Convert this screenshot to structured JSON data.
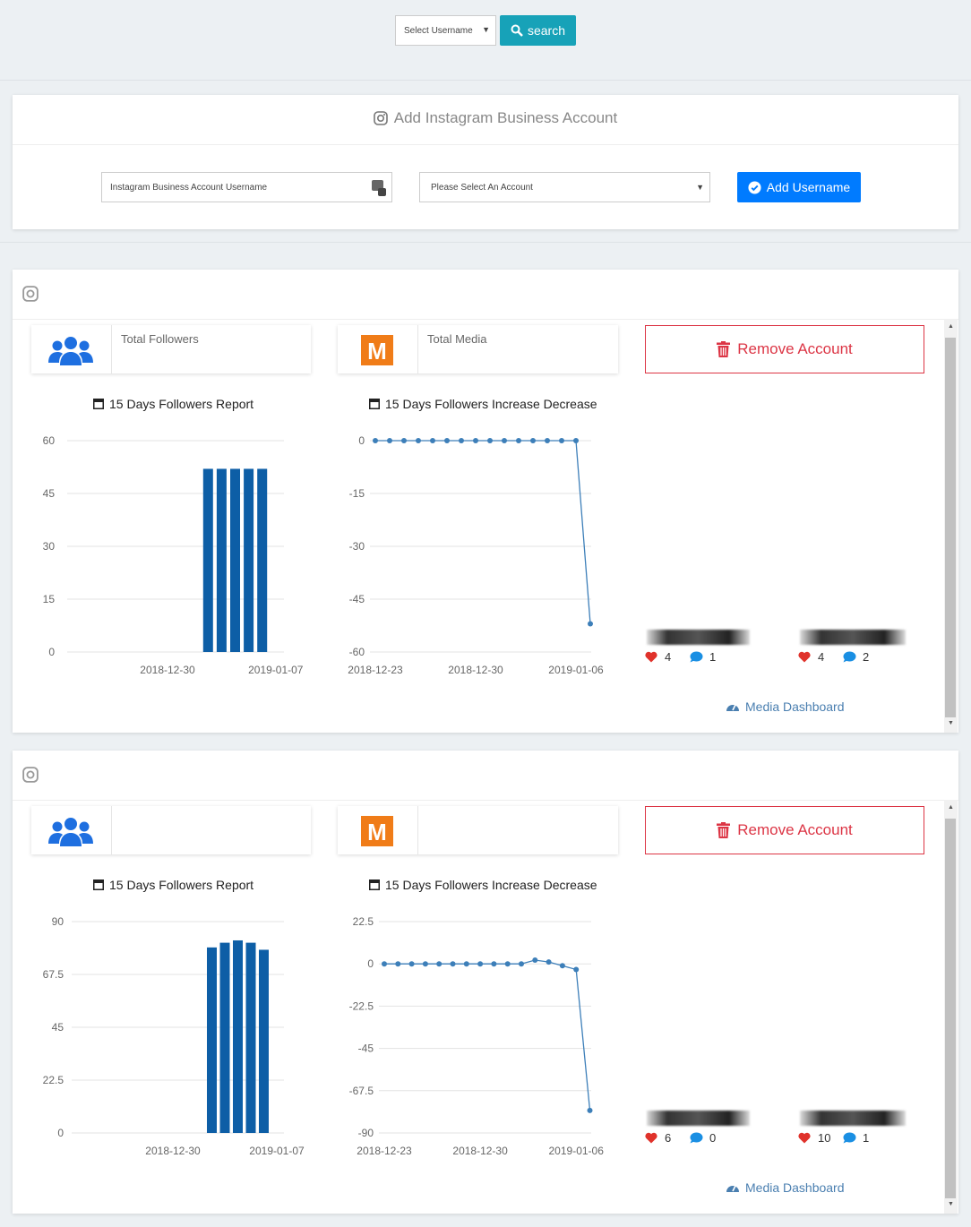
{
  "header": {
    "select_placeholder": "Select Username",
    "search_button": "search"
  },
  "add_account": {
    "title": "Add Instagram Business Account",
    "username_placeholder": "Instagram Business Account Username",
    "account_select": "Please Select An Account",
    "button": "Add Username"
  },
  "accounts": [
    {
      "total_followers_label": "Total Followers",
      "total_media_label": "Total Media",
      "remove_button": "Remove Account",
      "charts": [
        {
          "type": "bar",
          "title": "15 Days Followers Report",
          "categories": [
            null,
            null,
            null,
            null,
            null,
            null,
            null,
            "2018-12-30",
            null,
            null,
            null,
            null,
            null,
            null,
            null,
            "2019-01-07"
          ],
          "values": [
            null,
            null,
            null,
            null,
            null,
            null,
            null,
            null,
            null,
            null,
            52,
            52,
            52,
            52,
            52,
            null
          ],
          "color": "#0d5ea6",
          "ylim": [
            0,
            60
          ],
          "yticks": [
            0,
            15,
            30,
            45,
            60
          ],
          "grid": true
        },
        {
          "type": "line",
          "title": "15 Days Followers Increase Decrease",
          "categories": [
            "2018-12-23",
            null,
            null,
            null,
            null,
            null,
            null,
            "2018-12-30",
            null,
            null,
            null,
            null,
            null,
            null,
            "2019-01-06",
            null
          ],
          "values": [
            0,
            0,
            0,
            0,
            0,
            0,
            0,
            0,
            0,
            0,
            0,
            0,
            0,
            0,
            0,
            -52
          ],
          "color": "#3d7fb9",
          "ylim": [
            -60,
            0
          ],
          "yticks": [
            0,
            -15,
            -30,
            -45,
            -60
          ],
          "grid": true
        }
      ],
      "media": [
        {
          "likes": 4,
          "comments": 1
        },
        {
          "likes": 4,
          "comments": 2
        }
      ],
      "media_dashboard": "Media Dashboard"
    },
    {
      "remove_button": "Remove Account",
      "charts": [
        {
          "type": "bar",
          "title": "15 Days Followers Report",
          "categories": [
            null,
            null,
            null,
            null,
            null,
            null,
            null,
            "2018-12-30",
            null,
            null,
            null,
            null,
            null,
            null,
            null,
            "2019-01-07"
          ],
          "values": [
            null,
            null,
            null,
            null,
            null,
            null,
            null,
            null,
            null,
            null,
            79,
            81,
            82,
            81,
            78,
            null
          ],
          "color": "#0d5ea6",
          "ylim": [
            0,
            90
          ],
          "yticks": [
            0,
            22.5,
            45,
            67.5,
            90
          ],
          "grid": true
        },
        {
          "type": "line",
          "title": "15 Days Followers Increase Decrease",
          "categories": [
            "2018-12-23",
            null,
            null,
            null,
            null,
            null,
            null,
            "2018-12-30",
            null,
            null,
            null,
            null,
            null,
            null,
            "2019-01-06",
            null
          ],
          "values": [
            0,
            0,
            0,
            0,
            0,
            0,
            0,
            0,
            0,
            0,
            0,
            2,
            1,
            -1,
            -3,
            -78
          ],
          "color": "#3d7fb9",
          "ylim": [
            -90,
            22.5
          ],
          "yticks": [
            22.5,
            0,
            -22.5,
            -45,
            -67.5,
            -90
          ],
          "grid": true
        }
      ],
      "media": [
        {
          "likes": 6,
          "comments": 0
        },
        {
          "likes": 10,
          "comments": 1
        }
      ],
      "media_dashboard": "Media Dashboard"
    }
  ]
}
